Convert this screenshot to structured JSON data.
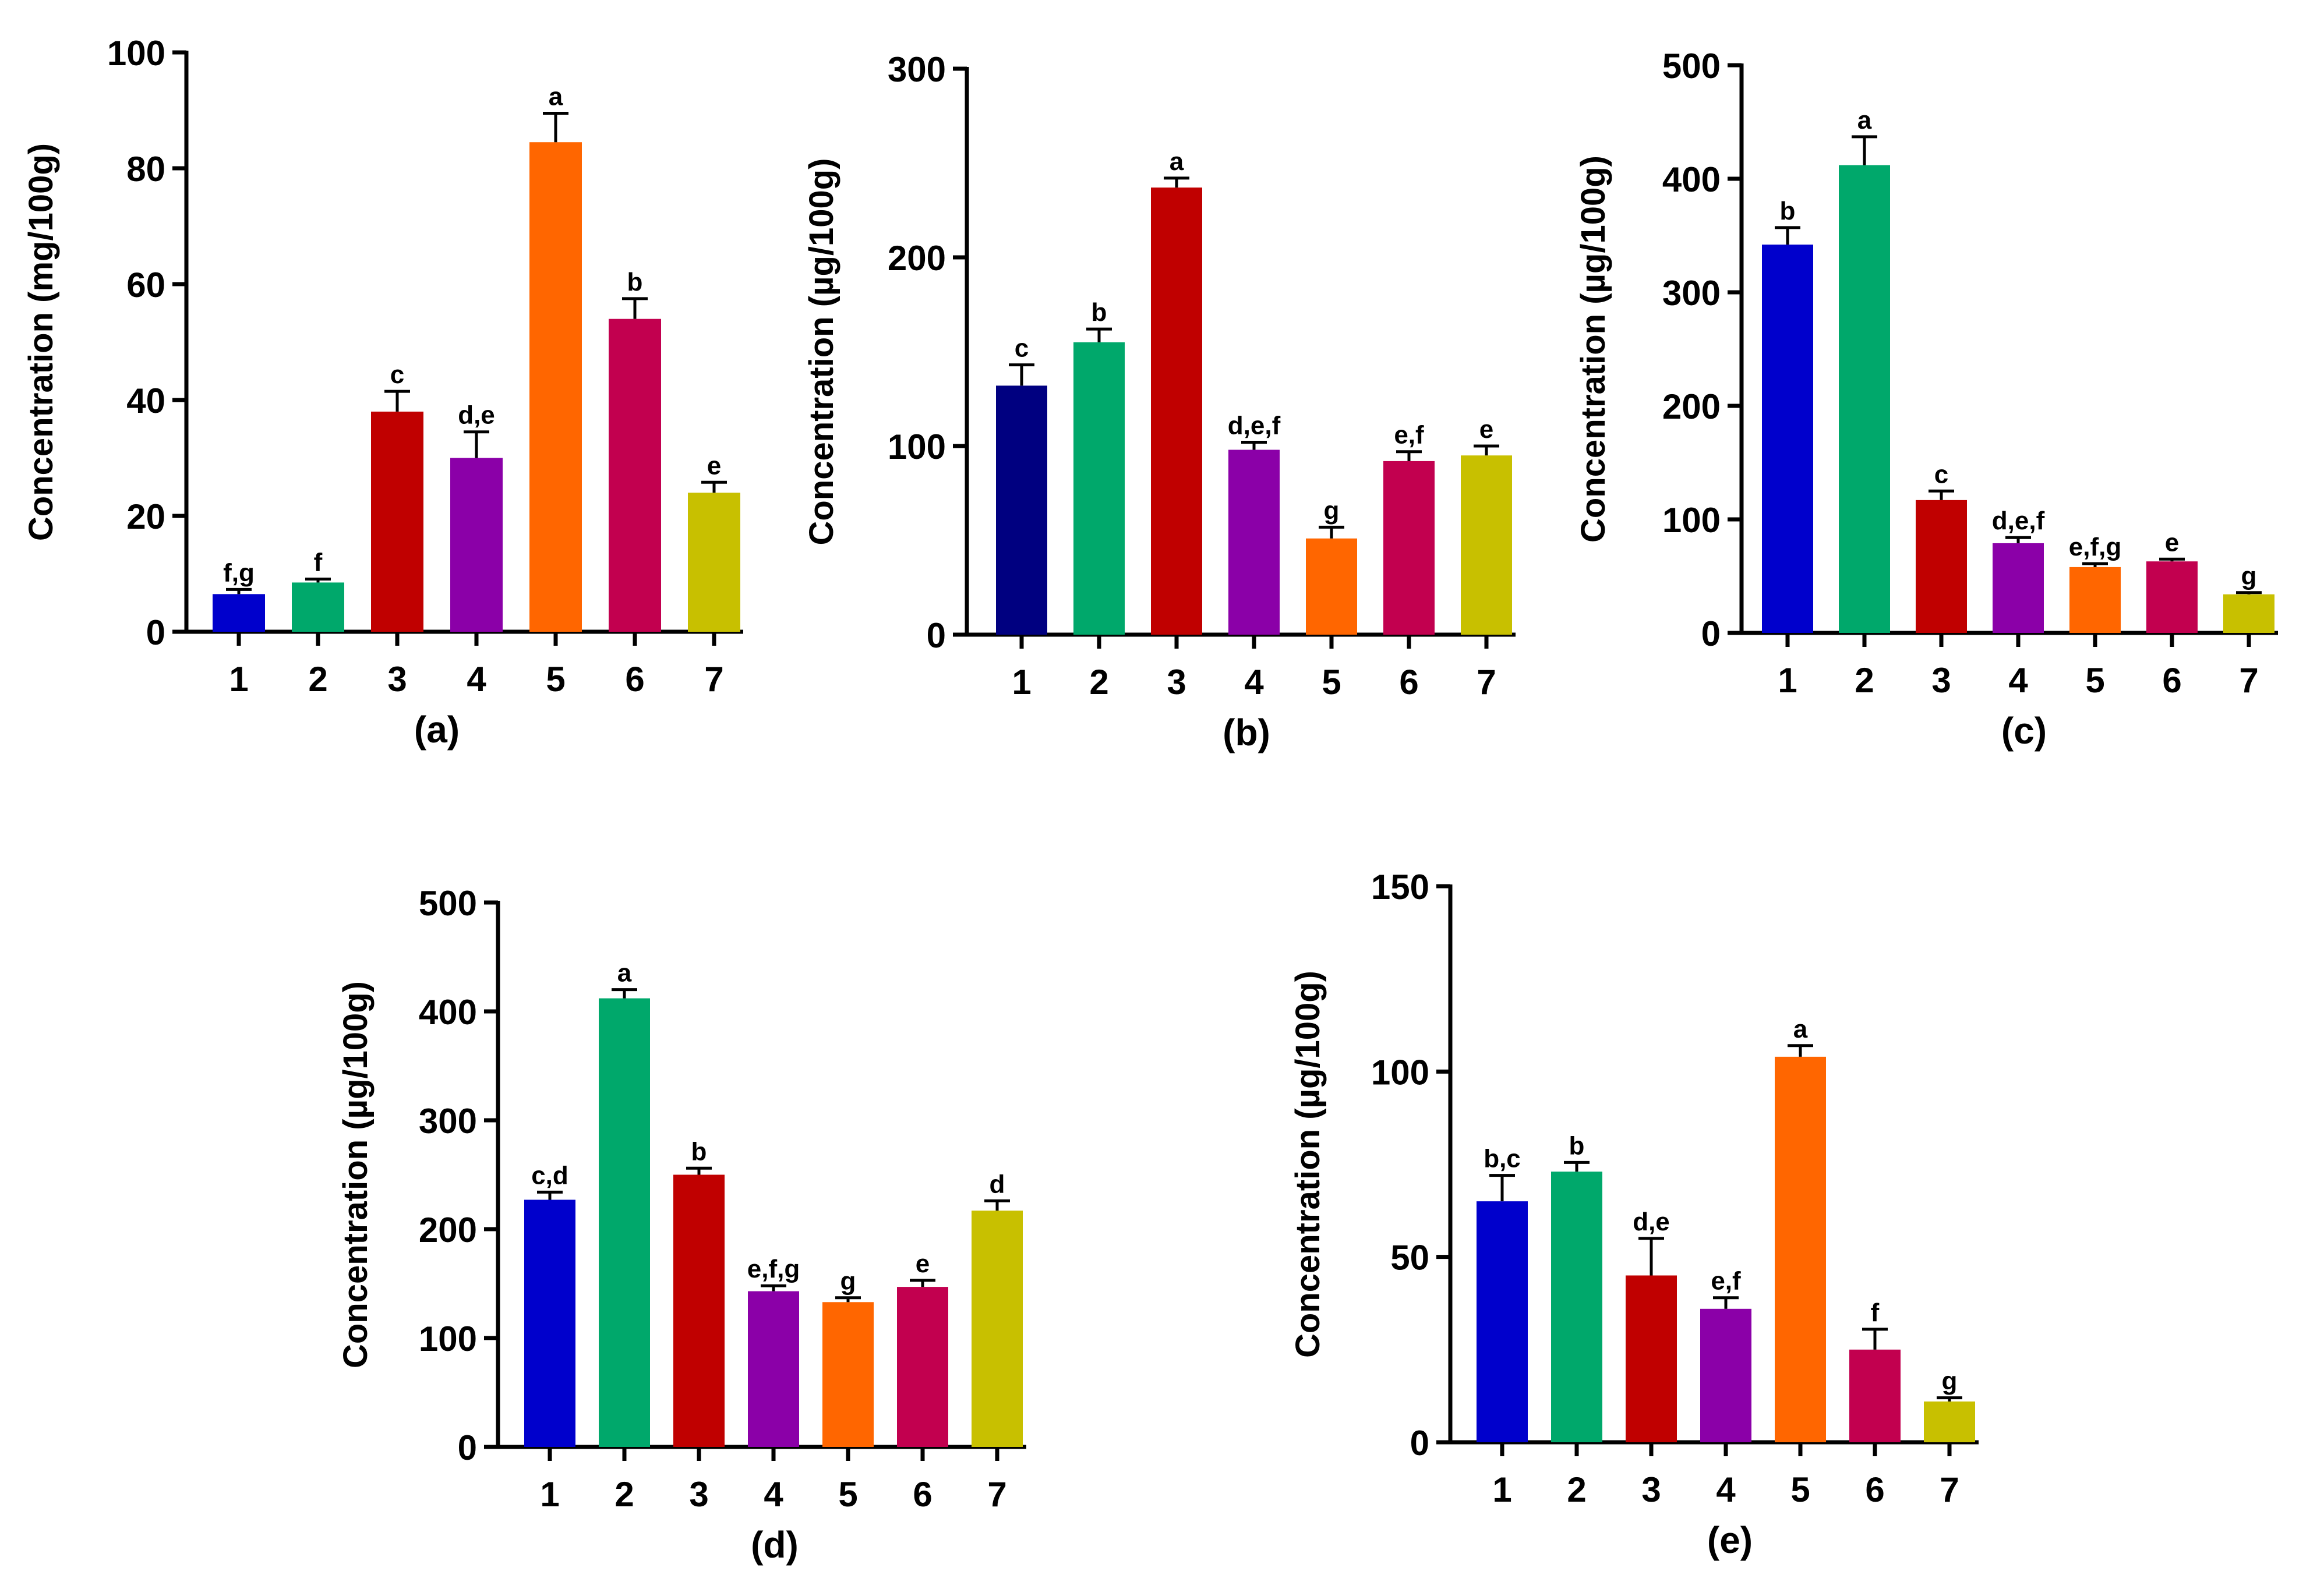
{
  "chart_data": [
    {
      "type": "bar",
      "panel_label": "(a)",
      "ylabel": "Concentration (mg/100g)",
      "ylim": [
        0,
        100
      ],
      "yticks": [
        0,
        20,
        40,
        60,
        80,
        100
      ],
      "categories": [
        "1",
        "2",
        "3",
        "4",
        "5",
        "6",
        "7"
      ],
      "values": [
        6.5,
        8.5,
        38,
        30,
        84.5,
        54,
        24
      ],
      "errors": [
        0.8,
        0.6,
        3.5,
        4.5,
        5,
        3.5,
        1.8
      ],
      "significance": [
        "f,g",
        "f",
        "c",
        "d,e",
        "a",
        "b",
        "e"
      ],
      "colors": [
        "#0000cc",
        "#00a86b",
        "#c00000",
        "#8b00a8",
        "#ff6600",
        "#c2004f",
        "#c8c000"
      ]
    },
    {
      "type": "bar",
      "panel_label": "(b)",
      "ylabel": "Concentration (µg/100g)",
      "ylim": [
        0,
        300
      ],
      "yticks": [
        0,
        100,
        200,
        300
      ],
      "categories": [
        "1",
        "2",
        "3",
        "4",
        "5",
        "6",
        "7"
      ],
      "values": [
        132,
        155,
        237,
        98,
        51,
        92,
        95
      ],
      "errors": [
        11,
        7,
        5,
        4,
        6,
        5,
        5
      ],
      "significance": [
        "c",
        "b",
        "a",
        "d,e,f",
        "g",
        "e,f",
        "e"
      ],
      "colors": [
        "#000080",
        "#00a86b",
        "#c00000",
        "#8b00a8",
        "#ff6600",
        "#c2004f",
        "#c8c000"
      ]
    },
    {
      "type": "bar",
      "panel_label": "(c)",
      "ylabel": "Concentration (µg/100g)",
      "ylim": [
        0,
        500
      ],
      "yticks": [
        0,
        100,
        200,
        300,
        400,
        500
      ],
      "categories": [
        "1",
        "2",
        "3",
        "4",
        "5",
        "6",
        "7"
      ],
      "values": [
        342,
        412,
        117,
        79,
        58,
        63,
        34
      ],
      "errors": [
        15,
        25,
        8,
        5,
        3,
        2,
        1.5
      ],
      "significance": [
        "b",
        "a",
        "c",
        "d,e,f",
        "e,f,g",
        "e",
        "g"
      ],
      "colors": [
        "#0000cc",
        "#00a86b",
        "#c00000",
        "#8b00a8",
        "#ff6600",
        "#c2004f",
        "#c8c000"
      ]
    },
    {
      "type": "bar",
      "panel_label": "(d)",
      "ylabel": "Concentration (µg/100g)",
      "ylim": [
        0,
        500
      ],
      "yticks": [
        0,
        100,
        200,
        300,
        400,
        500
      ],
      "categories": [
        "1",
        "2",
        "3",
        "4",
        "5",
        "6",
        "7"
      ],
      "values": [
        227,
        412,
        250,
        143,
        133,
        147,
        217
      ],
      "errors": [
        7,
        8,
        6,
        5,
        4,
        6,
        9
      ],
      "significance": [
        "c,d",
        "a",
        "b",
        "e,f,g",
        "g",
        "e",
        "d"
      ],
      "colors": [
        "#0000cc",
        "#00a86b",
        "#c00000",
        "#8b00a8",
        "#ff6600",
        "#c2004f",
        "#c8c000"
      ]
    },
    {
      "type": "bar",
      "panel_label": "(e)",
      "ylabel": "Concentration (µg/100g)",
      "ylim": [
        0,
        150
      ],
      "yticks": [
        0,
        50,
        100,
        150
      ],
      "categories": [
        "1",
        "2",
        "3",
        "4",
        "5",
        "6",
        "7"
      ],
      "values": [
        65,
        73,
        45,
        36,
        104,
        25,
        11
      ],
      "errors": [
        7,
        2.5,
        10,
        3,
        3,
        5.5,
        1
      ],
      "significance": [
        "b,c",
        "b",
        "d,e",
        "e,f",
        "a",
        "f",
        "g"
      ],
      "colors": [
        "#0000cc",
        "#00a86b",
        "#c00000",
        "#8b00a8",
        "#ff6600",
        "#c2004f",
        "#c8c000"
      ]
    }
  ]
}
